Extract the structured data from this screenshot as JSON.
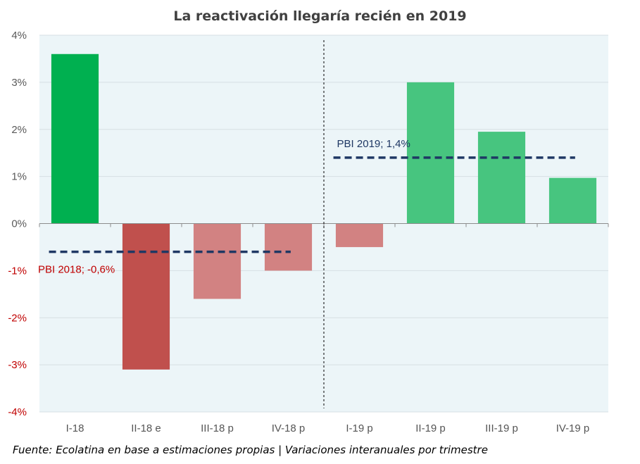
{
  "chart_data": {
    "type": "bar",
    "title": "La reactivación llegaría recién en 2019",
    "categories": [
      "I-18",
      "II-18 e",
      "III-18 p",
      "IV-18 p",
      "I-19 p",
      "II-19 p",
      "III-19 p",
      "IV-19 p"
    ],
    "values": [
      3.6,
      -3.1,
      -1.6,
      -1.0,
      -0.5,
      3.0,
      1.95,
      0.97
    ],
    "value_unit": "%",
    "ylim": [
      -4,
      4
    ],
    "y_ticks": [
      {
        "value": 4,
        "label": "4%"
      },
      {
        "value": 3,
        "label": "3%"
      },
      {
        "value": 2,
        "label": "2%"
      },
      {
        "value": 1,
        "label": "1%"
      },
      {
        "value": 0,
        "label": "0%"
      },
      {
        "value": -1,
        "label": "-1%"
      },
      {
        "value": -2,
        "label": "-2%"
      },
      {
        "value": -3,
        "label": "-3%"
      },
      {
        "value": -4,
        "label": "-4%"
      }
    ],
    "bar_colors": [
      "#00b050",
      "#c0504d",
      "#d28282",
      "#d28282",
      "#d28282",
      "#47c57f",
      "#47c57f",
      "#47c57f"
    ],
    "positive_label_color": "#595959",
    "negative_label_color": "#c00000",
    "grid": true,
    "plot_background": "#ecf5f8",
    "separator_after_category": "IV-18 p",
    "reference_lines": [
      {
        "label": "PBI 2018; -0,6%",
        "value": -0.6,
        "from": "I-18",
        "to": "IV-18 p",
        "label_color": "#c00000"
      },
      {
        "label": "PBI 2019; 1,4%",
        "value": 1.4,
        "from": "I-19 p",
        "to": "IV-19 p",
        "label_color": "#1f3864"
      }
    ],
    "reference_line_color": "#1f3864",
    "source": "Fuente: Ecolatina en base a estimaciones propias | Variaciones interanuales por trimestre"
  }
}
